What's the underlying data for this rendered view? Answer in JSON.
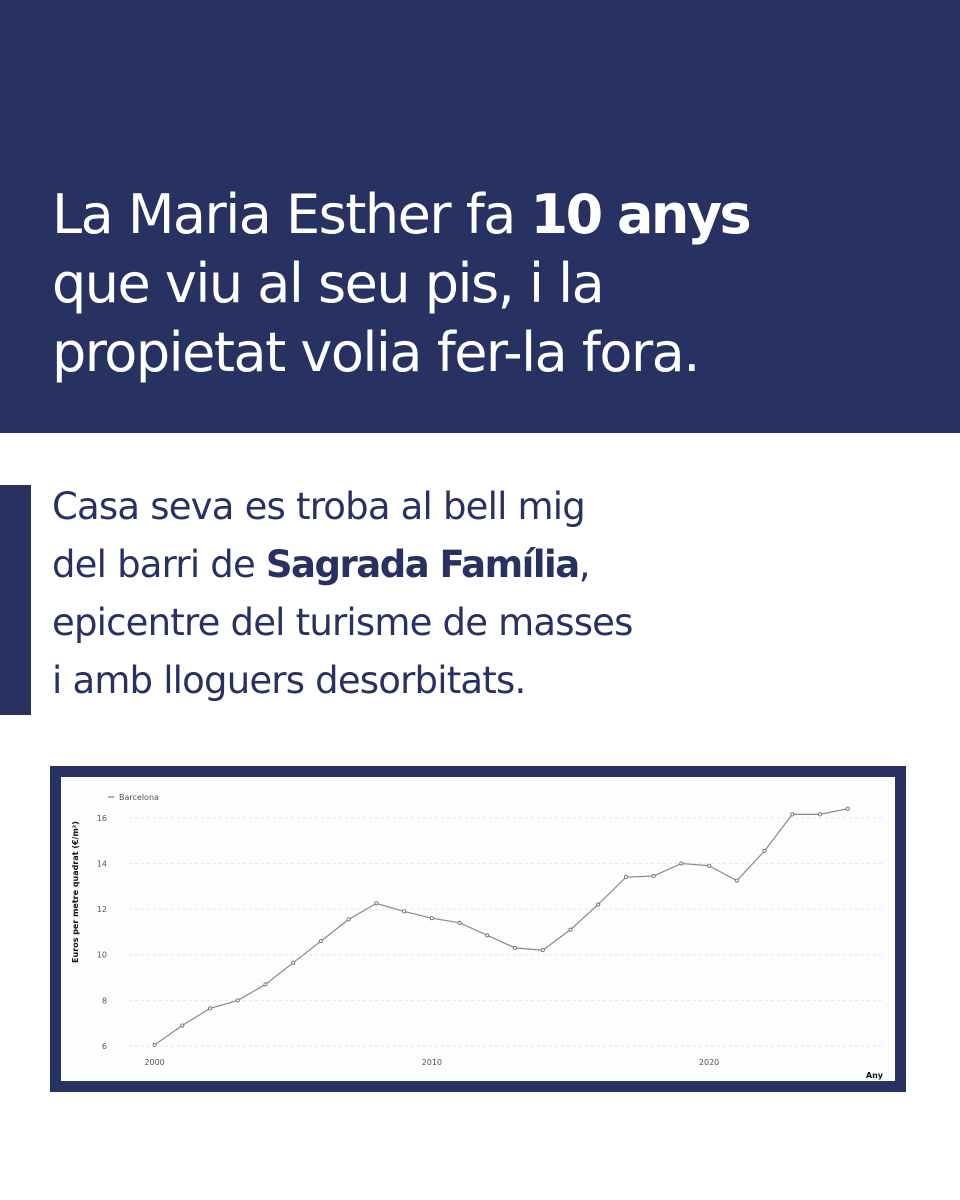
{
  "headline": {
    "part1": "La Maria Esther fa ",
    "bold": "10 anys",
    "part2": "que viu al seu pis, i la",
    "part3": "propietat volia fer-la fora."
  },
  "body": {
    "line1": "Casa seva es troba al bell mig",
    "line2_pre": "del barri de ",
    "line2_bold": "Sagrada Família",
    "line2_post": ",",
    "line3": "epicentre del turisme de masses",
    "line4": "i amb lloguers desorbitats."
  },
  "colors": {
    "navy": "#283262",
    "line": "#8a8a8a",
    "grid": "#e6e6e6"
  },
  "chart_data": {
    "type": "line",
    "ylabel": "Euros per metre quadrat (€/m²)",
    "xlabel": "Any",
    "x_ticks": [
      2000,
      2010,
      2020
    ],
    "y_ticks": [
      6,
      8,
      10,
      12,
      14,
      16
    ],
    "ylim": [
      5.3,
      17
    ],
    "xlim": [
      1998.5,
      2026.2
    ],
    "grid": true,
    "legend_position": "top-left",
    "series": [
      {
        "name": "Barcelona",
        "x": [
          2000,
          2001,
          2002,
          2003,
          2004,
          2005,
          2006,
          2007,
          2008,
          2009,
          2010,
          2011,
          2012,
          2013,
          2014,
          2015,
          2016,
          2017,
          2018,
          2019,
          2020,
          2021,
          2022,
          2023,
          2024,
          2025
        ],
        "values": [
          6.05,
          6.9,
          7.65,
          8.0,
          8.7,
          9.65,
          10.6,
          11.55,
          12.25,
          11.9,
          11.6,
          11.4,
          10.85,
          10.3,
          10.2,
          11.1,
          12.2,
          13.4,
          13.45,
          14.0,
          13.9,
          13.25,
          14.55,
          16.15,
          16.15,
          16.4
        ]
      }
    ]
  }
}
